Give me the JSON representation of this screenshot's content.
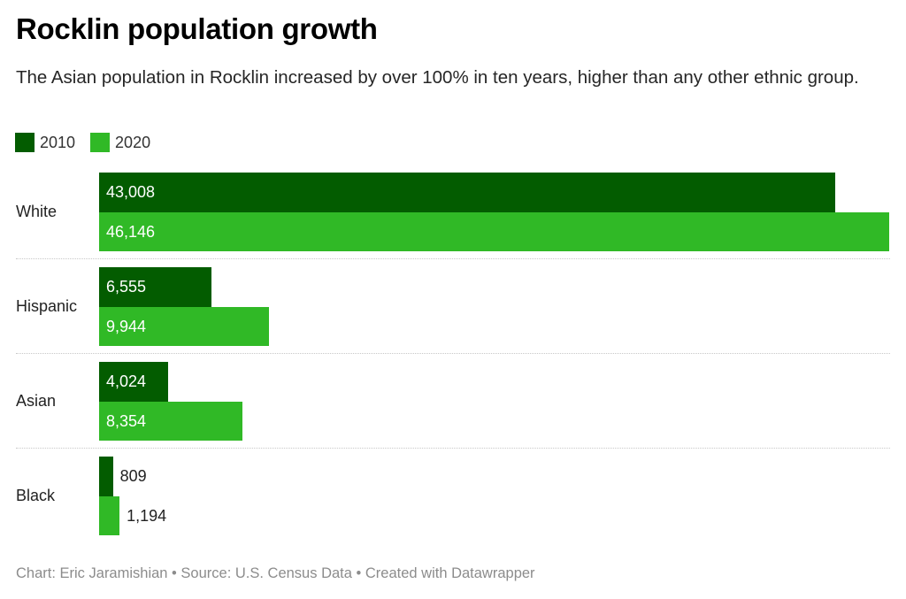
{
  "chart_data": {
    "type": "bar",
    "orientation": "horizontal",
    "title": "Rocklin population growth",
    "subtitle": "The Asian population in Rocklin increased by over 100% in ten years, higher than any other ethnic group.",
    "categories": [
      "White",
      "Hispanic",
      "Asian",
      "Black"
    ],
    "series": [
      {
        "name": "2010",
        "color": "#035c00",
        "values": [
          43008,
          6555,
          4024,
          809
        ],
        "labels": [
          "43,008",
          "6,555",
          "4,024",
          "809"
        ]
      },
      {
        "name": "2020",
        "color": "#30b926",
        "values": [
          46146,
          9944,
          8354,
          1194
        ],
        "labels": [
          "46,146",
          "9,944",
          "8,354",
          "1,194"
        ]
      }
    ],
    "xlim": [
      0,
      46146
    ],
    "grid": false,
    "legend_position": "top-left",
    "xlabel": "",
    "ylabel": ""
  },
  "legend": [
    {
      "label": "2010",
      "color": "#035c00"
    },
    {
      "label": "2020",
      "color": "#30b926"
    }
  ],
  "footer": "Chart: Eric Jaramishian • Source: U.S. Census Data • Created with Datawrapper"
}
